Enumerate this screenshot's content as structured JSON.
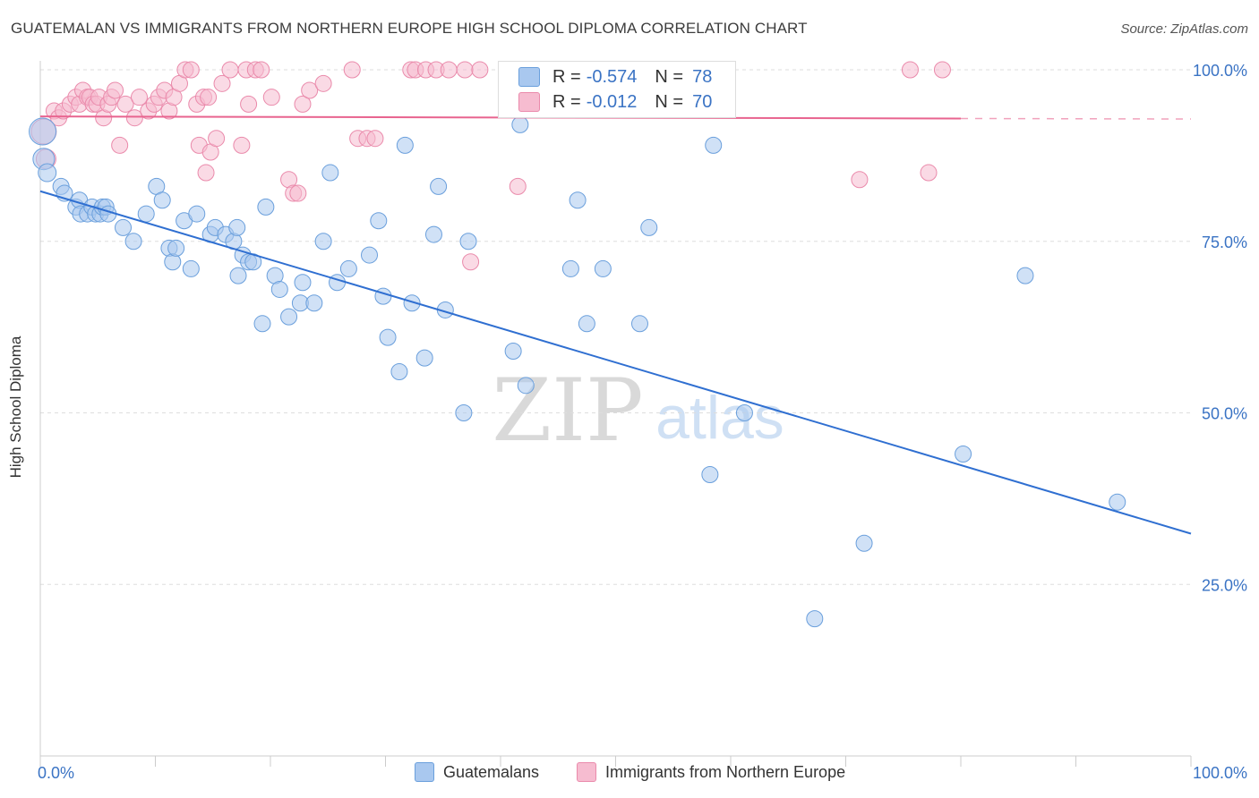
{
  "header": {
    "title": "GUATEMALAN VS IMMIGRANTS FROM NORTHERN EUROPE HIGH SCHOOL DIPLOMA CORRELATION CHART",
    "source": "Source: ZipAtlas.com"
  },
  "watermark": {
    "zip": "ZIP",
    "atlas": "atlas"
  },
  "legend_top": {
    "rows": [
      {
        "r_label": "R =",
        "r_value": "-0.574",
        "n_label": "N =",
        "n_value": "78"
      },
      {
        "r_label": "R =",
        "r_value": "-0.012",
        "n_label": "N =",
        "n_value": "70"
      }
    ]
  },
  "legend_bottom": {
    "items": [
      "Guatemalans",
      "Immigrants from Northern Europe"
    ]
  },
  "colors": {
    "blue_fill": "#a9c8ef",
    "blue_stroke": "#6a9fdc",
    "blue_line": "#2f6fd1",
    "pink_fill": "#f6bcd0",
    "pink_stroke": "#ea8aab",
    "pink_line": "#e8648f",
    "tick_label": "#3a73c4",
    "grid": "#dddddd"
  },
  "chart_data": {
    "type": "scatter",
    "title": "GUATEMALAN VS IMMIGRANTS FROM NORTHERN EUROPE HIGH SCHOOL DIPLOMA CORRELATION CHART",
    "xlabel": "",
    "ylabel": "High School Diploma",
    "xlim": [
      0,
      100
    ],
    "ylim": [
      0,
      102
    ],
    "x_tick_labels": [
      "0.0%",
      "100.0%"
    ],
    "y_ticks": [
      25,
      50,
      75,
      100
    ],
    "y_tick_labels": [
      "25.0%",
      "50.0%",
      "75.0%",
      "100.0%"
    ],
    "grid": "horizontal dashed",
    "legend_position": "bottom",
    "series": [
      {
        "name": "Guatemalans",
        "r": -0.574,
        "n": 78,
        "trend": {
          "x": [
            0,
            100
          ],
          "y": [
            82.3,
            32.4
          ]
        },
        "points": [
          [
            0.2,
            91
          ],
          [
            0.3,
            87
          ],
          [
            0.6,
            85
          ],
          [
            1.8,
            83
          ],
          [
            2.1,
            82
          ],
          [
            3.1,
            80
          ],
          [
            3.4,
            81
          ],
          [
            3.5,
            79
          ],
          [
            4.1,
            79
          ],
          [
            4.5,
            80
          ],
          [
            4.8,
            79
          ],
          [
            5.2,
            79
          ],
          [
            5.4,
            80
          ],
          [
            5.7,
            80
          ],
          [
            5.9,
            79
          ],
          [
            7.2,
            77
          ],
          [
            8.1,
            75
          ],
          [
            9.2,
            79
          ],
          [
            10.1,
            83
          ],
          [
            10.6,
            81
          ],
          [
            11.2,
            74
          ],
          [
            11.5,
            72
          ],
          [
            11.8,
            74
          ],
          [
            12.5,
            78
          ],
          [
            13.1,
            71
          ],
          [
            13.6,
            79
          ],
          [
            14.8,
            76
          ],
          [
            15.2,
            77
          ],
          [
            16.1,
            76
          ],
          [
            16.8,
            75
          ],
          [
            17.1,
            77
          ],
          [
            17.6,
            73
          ],
          [
            17.2,
            70
          ],
          [
            18.1,
            72
          ],
          [
            18.5,
            72
          ],
          [
            19.6,
            80
          ],
          [
            19.3,
            63
          ],
          [
            20.4,
            70
          ],
          [
            20.8,
            68
          ],
          [
            21.6,
            64
          ],
          [
            22.6,
            66
          ],
          [
            22.8,
            69
          ],
          [
            23.8,
            66
          ],
          [
            24.6,
            75
          ],
          [
            25.2,
            85
          ],
          [
            25.8,
            69
          ],
          [
            26.8,
            71
          ],
          [
            28.6,
            73
          ],
          [
            29.4,
            78
          ],
          [
            29.8,
            67
          ],
          [
            30.2,
            61
          ],
          [
            31.2,
            56
          ],
          [
            31.7,
            89
          ],
          [
            32.3,
            66
          ],
          [
            33.4,
            58
          ],
          [
            34.2,
            76
          ],
          [
            34.6,
            83
          ],
          [
            35.2,
            65
          ],
          [
            36.8,
            50
          ],
          [
            37.2,
            75
          ],
          [
            41.1,
            59
          ],
          [
            42.2,
            54
          ],
          [
            41.7,
            92
          ],
          [
            46.1,
            71
          ],
          [
            46.7,
            81
          ],
          [
            47.5,
            63
          ],
          [
            48.9,
            71
          ],
          [
            49.8,
            96
          ],
          [
            52.1,
            63
          ],
          [
            52.9,
            77
          ],
          [
            58.2,
            41
          ],
          [
            58.5,
            89
          ],
          [
            61.2,
            50
          ],
          [
            67.3,
            20
          ],
          [
            71.6,
            31
          ],
          [
            80.2,
            44
          ],
          [
            85.6,
            70
          ],
          [
            93.6,
            37
          ]
        ],
        "radii": {
          "0": 15,
          "1": 12,
          "2": 10
        }
      },
      {
        "name": "Immigrants from Northern Europe",
        "r": -0.012,
        "n": 70,
        "trend": {
          "x": [
            0,
            80
          ],
          "y": [
            93.2,
            92.9
          ],
          "dashed_to": 100
        },
        "points": [
          [
            0.3,
            91
          ],
          [
            0.5,
            87
          ],
          [
            1.2,
            94
          ],
          [
            1.6,
            93
          ],
          [
            2.0,
            94
          ],
          [
            2.6,
            95
          ],
          [
            3.1,
            96
          ],
          [
            3.4,
            95
          ],
          [
            3.7,
            97
          ],
          [
            4.1,
            96
          ],
          [
            4.3,
            96
          ],
          [
            4.6,
            95
          ],
          [
            4.9,
            95
          ],
          [
            5.1,
            96
          ],
          [
            5.5,
            93
          ],
          [
            5.9,
            95
          ],
          [
            6.2,
            96
          ],
          [
            6.5,
            97
          ],
          [
            6.9,
            89
          ],
          [
            7.4,
            95
          ],
          [
            8.2,
            93
          ],
          [
            8.6,
            96
          ],
          [
            9.4,
            94
          ],
          [
            9.9,
            95
          ],
          [
            10.3,
            96
          ],
          [
            10.8,
            97
          ],
          [
            11.2,
            94
          ],
          [
            11.6,
            96
          ],
          [
            12.1,
            98
          ],
          [
            12.6,
            100
          ],
          [
            13.1,
            100
          ],
          [
            13.6,
            95
          ],
          [
            13.8,
            89
          ],
          [
            14.2,
            96
          ],
          [
            14.6,
            96
          ],
          [
            14.4,
            85
          ],
          [
            14.8,
            88
          ],
          [
            15.3,
            90
          ],
          [
            15.8,
            98
          ],
          [
            16.5,
            100
          ],
          [
            17.5,
            89
          ],
          [
            17.9,
            100
          ],
          [
            18.1,
            95
          ],
          [
            18.7,
            100
          ],
          [
            19.2,
            100
          ],
          [
            20.1,
            96
          ],
          [
            21.6,
            84
          ],
          [
            22.0,
            82
          ],
          [
            22.4,
            82
          ],
          [
            22.8,
            95
          ],
          [
            23.4,
            97
          ],
          [
            24.6,
            98
          ],
          [
            27.1,
            100
          ],
          [
            27.6,
            90
          ],
          [
            28.4,
            90
          ],
          [
            29.1,
            90
          ],
          [
            32.2,
            100
          ],
          [
            32.6,
            100
          ],
          [
            33.5,
            100
          ],
          [
            34.4,
            100
          ],
          [
            35.5,
            100
          ],
          [
            36.9,
            100
          ],
          [
            37.4,
            72
          ],
          [
            38.2,
            100
          ],
          [
            41.5,
            83
          ],
          [
            46.3,
            100
          ],
          [
            71.2,
            84
          ],
          [
            75.6,
            100
          ],
          [
            77.2,
            85
          ],
          [
            78.4,
            100
          ]
        ],
        "radii": {
          "0": 14,
          "1": 11
        }
      }
    ]
  }
}
